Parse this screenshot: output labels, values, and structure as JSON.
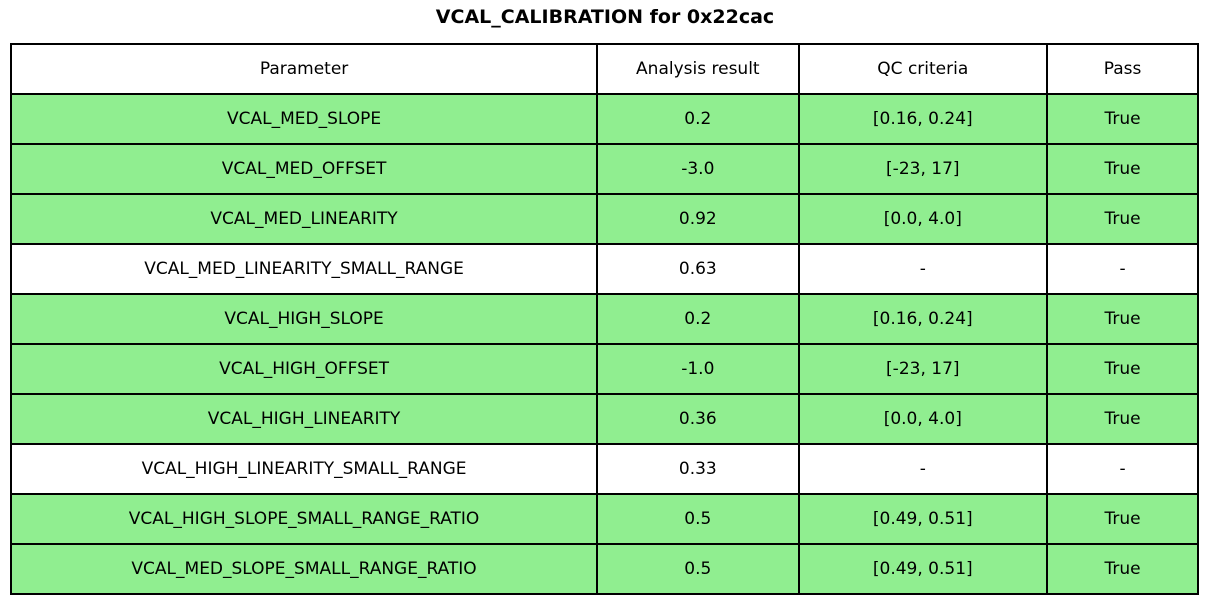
{
  "title": "VCAL_CALIBRATION for 0x22cac",
  "colors": {
    "row_pass_green": "#90EE90",
    "row_neutral_white": "#FFFFFF",
    "border_black": "#000000",
    "text_black": "#000000"
  },
  "chart_data": {
    "type": "table",
    "title": "VCAL_CALIBRATION for 0x22cac",
    "columns": [
      "Parameter",
      "Analysis result",
      "QC criteria",
      "Pass"
    ],
    "rows": [
      {
        "cells": [
          "VCAL_MED_SLOPE",
          "0.2",
          "[0.16, 0.24]",
          "True"
        ],
        "highlight": "green"
      },
      {
        "cells": [
          "VCAL_MED_OFFSET",
          "-3.0",
          "[-23, 17]",
          "True"
        ],
        "highlight": "green"
      },
      {
        "cells": [
          "VCAL_MED_LINEARITY",
          "0.92",
          "[0.0, 4.0]",
          "True"
        ],
        "highlight": "green"
      },
      {
        "cells": [
          "VCAL_MED_LINEARITY_SMALL_RANGE",
          "0.63",
          "-",
          "-"
        ],
        "highlight": "white"
      },
      {
        "cells": [
          "VCAL_HIGH_SLOPE",
          "0.2",
          "[0.16, 0.24]",
          "True"
        ],
        "highlight": "green"
      },
      {
        "cells": [
          "VCAL_HIGH_OFFSET",
          "-1.0",
          "[-23, 17]",
          "True"
        ],
        "highlight": "green"
      },
      {
        "cells": [
          "VCAL_HIGH_LINEARITY",
          "0.36",
          "[0.0, 4.0]",
          "True"
        ],
        "highlight": "green"
      },
      {
        "cells": [
          "VCAL_HIGH_LINEARITY_SMALL_RANGE",
          "0.33",
          "-",
          "-"
        ],
        "highlight": "white"
      },
      {
        "cells": [
          "VCAL_HIGH_SLOPE_SMALL_RANGE_RATIO",
          "0.5",
          "[0.49, 0.51]",
          "True"
        ],
        "highlight": "green"
      },
      {
        "cells": [
          "VCAL_MED_SLOPE_SMALL_RANGE_RATIO",
          "0.5",
          "[0.49, 0.51]",
          "True"
        ],
        "highlight": "green"
      }
    ]
  }
}
